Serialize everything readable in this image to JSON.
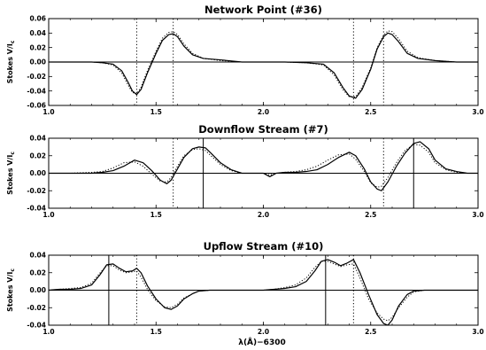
{
  "chart_data": [
    {
      "type": "line",
      "title": "Network Point (#36)",
      "ylabel_main": "Stokes V/I",
      "ylabel_sub": "c",
      "xlim": [
        1.0,
        3.0
      ],
      "ylim": [
        -0.06,
        0.06
      ],
      "xticks": [
        "1.0",
        "1.5",
        "2.0",
        "2.5",
        "3.0"
      ],
      "yticks": [
        "-0.06",
        "-0.04",
        "-0.02",
        "0.00",
        "0.02",
        "0.04",
        "0.06"
      ],
      "dotted_vlines": [
        1.41,
        1.58,
        2.42,
        2.56
      ],
      "solid_vlines": [],
      "series": [
        {
          "style": "solid",
          "x": [
            1.0,
            1.1,
            1.2,
            1.25,
            1.3,
            1.34,
            1.37,
            1.39,
            1.41,
            1.43,
            1.46,
            1.5,
            1.53,
            1.56,
            1.58,
            1.6,
            1.63,
            1.67,
            1.72,
            1.8,
            1.9,
            2.0,
            2.1,
            2.2,
            2.28,
            2.33,
            2.37,
            2.4,
            2.43,
            2.46,
            2.5,
            2.53,
            2.56,
            2.58,
            2.6,
            2.63,
            2.67,
            2.72,
            2.8,
            2.9,
            3.0
          ],
          "y": [
            0.0,
            0.0,
            0.0,
            -0.001,
            -0.003,
            -0.012,
            -0.028,
            -0.04,
            -0.045,
            -0.038,
            -0.015,
            0.012,
            0.03,
            0.038,
            0.039,
            0.035,
            0.022,
            0.01,
            0.005,
            0.003,
            0.0,
            0.0,
            0.0,
            -0.001,
            -0.003,
            -0.015,
            -0.035,
            -0.047,
            -0.05,
            -0.038,
            -0.01,
            0.018,
            0.035,
            0.04,
            0.038,
            0.028,
            0.012,
            0.005,
            0.002,
            0.0,
            0.0
          ]
        },
        {
          "style": "dotted",
          "x": [
            1.0,
            1.1,
            1.2,
            1.25,
            1.3,
            1.34,
            1.37,
            1.39,
            1.41,
            1.43,
            1.46,
            1.5,
            1.53,
            1.56,
            1.58,
            1.6,
            1.63,
            1.67,
            1.72,
            1.8,
            1.9,
            2.0,
            2.1,
            2.2,
            2.28,
            2.33,
            2.37,
            2.4,
            2.43,
            2.46,
            2.5,
            2.53,
            2.56,
            2.58,
            2.6,
            2.63,
            2.67,
            2.72,
            2.8,
            2.9,
            3.0
          ],
          "y": [
            0.0,
            0.0,
            0.0,
            -0.001,
            -0.004,
            -0.015,
            -0.032,
            -0.042,
            -0.044,
            -0.035,
            -0.012,
            0.015,
            0.033,
            0.041,
            0.042,
            0.038,
            0.025,
            0.012,
            0.005,
            0.002,
            0.0,
            0.0,
            0.0,
            -0.001,
            -0.004,
            -0.018,
            -0.038,
            -0.048,
            -0.048,
            -0.035,
            -0.008,
            0.02,
            0.037,
            0.043,
            0.042,
            0.032,
            0.015,
            0.006,
            0.002,
            0.0,
            0.0
          ]
        }
      ]
    },
    {
      "type": "line",
      "title": "Downflow Stream (#7)",
      "ylabel_main": "Stokes V/I",
      "ylabel_sub": "c",
      "xlim": [
        1.0,
        3.0
      ],
      "ylim": [
        -0.04,
        0.04
      ],
      "xticks": [
        "1.0",
        "1.5",
        "2.0",
        "2.5",
        "3.0"
      ],
      "yticks": [
        "-0.04",
        "-0.02",
        "0.00",
        "0.02",
        "0.04"
      ],
      "dotted_vlines": [
        1.58,
        2.56
      ],
      "solid_vlines": [
        1.72,
        2.7
      ],
      "series": [
        {
          "style": "solid",
          "x": [
            1.0,
            1.1,
            1.2,
            1.25,
            1.3,
            1.35,
            1.4,
            1.44,
            1.48,
            1.52,
            1.55,
            1.57,
            1.6,
            1.63,
            1.67,
            1.7,
            1.73,
            1.76,
            1.8,
            1.85,
            1.9,
            1.95,
            2.0,
            2.03,
            2.06,
            2.1,
            2.15,
            2.2,
            2.25,
            2.3,
            2.35,
            2.4,
            2.43,
            2.47,
            2.5,
            2.53,
            2.55,
            2.58,
            2.62,
            2.66,
            2.7,
            2.73,
            2.77,
            2.8,
            2.85,
            2.9,
            2.95,
            3.0
          ],
          "y": [
            0.0,
            0.0,
            0.0,
            0.001,
            0.003,
            0.008,
            0.015,
            0.012,
            0.003,
            -0.008,
            -0.012,
            -0.008,
            0.005,
            0.018,
            0.028,
            0.03,
            0.029,
            0.022,
            0.012,
            0.004,
            0.0,
            0.0,
            0.0,
            -0.004,
            0.0,
            0.001,
            0.001,
            0.002,
            0.004,
            0.01,
            0.018,
            0.024,
            0.02,
            0.005,
            -0.01,
            -0.018,
            -0.02,
            -0.01,
            0.008,
            0.023,
            0.034,
            0.036,
            0.028,
            0.015,
            0.005,
            0.002,
            0.0,
            0.0
          ]
        },
        {
          "style": "dotted",
          "x": [
            1.0,
            1.1,
            1.2,
            1.25,
            1.3,
            1.35,
            1.4,
            1.44,
            1.48,
            1.52,
            1.55,
            1.57,
            1.6,
            1.63,
            1.67,
            1.7,
            1.73,
            1.76,
            1.8,
            1.85,
            1.9,
            1.95,
            2.0,
            2.03,
            2.06,
            2.1,
            2.15,
            2.2,
            2.25,
            2.3,
            2.35,
            2.4,
            2.43,
            2.47,
            2.5,
            2.53,
            2.55,
            2.58,
            2.62,
            2.66,
            2.7,
            2.73,
            2.77,
            2.8,
            2.85,
            2.9,
            2.95,
            3.0
          ],
          "y": [
            0.0,
            0.0,
            0.001,
            0.002,
            0.006,
            0.012,
            0.013,
            0.008,
            -0.001,
            -0.009,
            -0.01,
            -0.005,
            0.008,
            0.02,
            0.027,
            0.028,
            0.026,
            0.019,
            0.01,
            0.003,
            0.0,
            0.0,
            0.0,
            -0.002,
            0.0,
            0.001,
            0.002,
            0.004,
            0.008,
            0.015,
            0.021,
            0.022,
            0.016,
            0.002,
            -0.011,
            -0.016,
            -0.015,
            -0.005,
            0.012,
            0.026,
            0.033,
            0.032,
            0.024,
            0.012,
            0.004,
            0.001,
            0.0,
            0.0
          ]
        }
      ]
    },
    {
      "type": "line",
      "title": "Upflow Stream (#10)",
      "ylabel_main": "Stokes V/I",
      "ylabel_sub": "c",
      "xlabel": "λ(Å)−6300",
      "xlim": [
        1.0,
        3.0
      ],
      "ylim": [
        -0.04,
        0.04
      ],
      "xticks": [
        "1.0",
        "1.5",
        "2.0",
        "2.5",
        "3.0"
      ],
      "yticks": [
        "-0.04",
        "-0.02",
        "0.00",
        "0.02",
        "0.04"
      ],
      "dotted_vlines": [
        1.41,
        2.42
      ],
      "solid_vlines": [
        1.28,
        2.29
      ],
      "series": [
        {
          "style": "solid",
          "x": [
            1.0,
            1.05,
            1.1,
            1.15,
            1.2,
            1.24,
            1.27,
            1.3,
            1.33,
            1.36,
            1.39,
            1.41,
            1.43,
            1.46,
            1.5,
            1.54,
            1.57,
            1.6,
            1.63,
            1.67,
            1.7,
            1.75,
            1.8,
            1.9,
            2.0,
            2.05,
            2.1,
            2.15,
            2.2,
            2.24,
            2.27,
            2.3,
            2.33,
            2.36,
            2.39,
            2.42,
            2.45,
            2.49,
            2.53,
            2.56,
            2.58,
            2.6,
            2.63,
            2.67,
            2.7,
            2.75,
            2.8,
            2.9,
            3.0
          ],
          "y": [
            0.0,
            0.001,
            0.001,
            0.002,
            0.006,
            0.018,
            0.029,
            0.03,
            0.025,
            0.021,
            0.022,
            0.025,
            0.02,
            0.005,
            -0.01,
            -0.02,
            -0.022,
            -0.018,
            -0.01,
            -0.004,
            -0.001,
            0.0,
            0.0,
            0.0,
            0.0,
            0.001,
            0.002,
            0.004,
            0.01,
            0.022,
            0.033,
            0.035,
            0.032,
            0.028,
            0.031,
            0.035,
            0.02,
            -0.005,
            -0.028,
            -0.038,
            -0.04,
            -0.034,
            -0.018,
            -0.005,
            -0.001,
            0.0,
            0.0,
            0.0,
            0.0
          ]
        },
        {
          "style": "dotted",
          "x": [
            1.0,
            1.05,
            1.1,
            1.15,
            1.2,
            1.24,
            1.27,
            1.3,
            1.33,
            1.36,
            1.39,
            1.41,
            1.43,
            1.46,
            1.5,
            1.54,
            1.57,
            1.6,
            1.63,
            1.67,
            1.7,
            1.75,
            1.8,
            1.9,
            2.0,
            2.05,
            2.1,
            2.15,
            2.2,
            2.24,
            2.27,
            2.3,
            2.33,
            2.36,
            2.39,
            2.42,
            2.45,
            2.49,
            2.53,
            2.56,
            2.58,
            2.6,
            2.63,
            2.67,
            2.7,
            2.75,
            2.8,
            2.9,
            3.0
          ],
          "y": [
            0.0,
            0.001,
            0.002,
            0.003,
            0.008,
            0.02,
            0.028,
            0.028,
            0.023,
            0.02,
            0.021,
            0.022,
            0.015,
            0.001,
            -0.012,
            -0.019,
            -0.02,
            -0.016,
            -0.009,
            -0.004,
            -0.001,
            0.0,
            0.0,
            0.0,
            0.0,
            0.001,
            0.003,
            0.006,
            0.014,
            0.026,
            0.033,
            0.033,
            0.03,
            0.027,
            0.029,
            0.03,
            0.014,
            -0.01,
            -0.026,
            -0.033,
            -0.035,
            -0.031,
            -0.02,
            -0.008,
            -0.002,
            0.0,
            0.0,
            0.0,
            0.0
          ]
        }
      ]
    }
  ]
}
